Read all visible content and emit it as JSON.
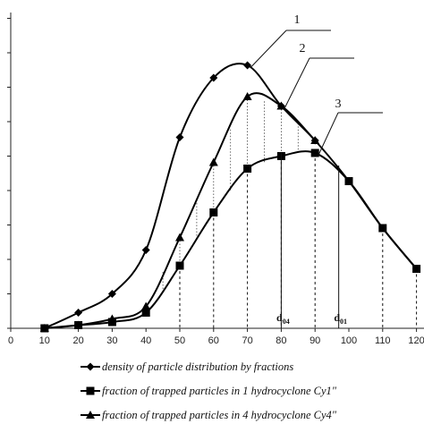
{
  "chart_data": {
    "type": "line",
    "title": "",
    "xlabel": "",
    "ylabel": "",
    "x_ticks": [
      0,
      10,
      20,
      30,
      40,
      50,
      60,
      70,
      80,
      90,
      100,
      110,
      120
    ],
    "xlim": [
      0,
      120
    ],
    "series": [
      {
        "name": "density of particle distribution by fractions",
        "marker": "diamond",
        "callout": "1",
        "x": [
          10,
          20,
          30,
          40,
          50,
          60,
          70,
          80,
          90,
          100,
          110,
          120
        ],
        "values": [
          0,
          5,
          11,
          25,
          61,
          80,
          84,
          71,
          60,
          47,
          32,
          19
        ]
      },
      {
        "name": "fraction of trapped particles in 1 hydrocyclone Cy1\"",
        "marker": "square",
        "callout": "3",
        "x": [
          10,
          20,
          30,
          40,
          50,
          60,
          70,
          80,
          90,
          100,
          110,
          120
        ],
        "values": [
          0,
          1,
          2,
          5,
          20,
          37,
          51,
          55,
          56,
          47,
          32,
          19
        ]
      },
      {
        "name": "fraction of trapped particles in 4 hydrocyclone Cy4\"",
        "marker": "triangle",
        "callout": "2",
        "x": [
          10,
          20,
          30,
          40,
          50,
          60,
          70,
          80,
          90
        ],
        "values": [
          0,
          1,
          3,
          7,
          29,
          53,
          74,
          71,
          60
        ]
      }
    ],
    "markers": [
      {
        "label": "d",
        "subscript": "04",
        "x": 80
      },
      {
        "label": "d",
        "subscript": "01",
        "x": 97
      }
    ],
    "legend_position": "bottom"
  }
}
